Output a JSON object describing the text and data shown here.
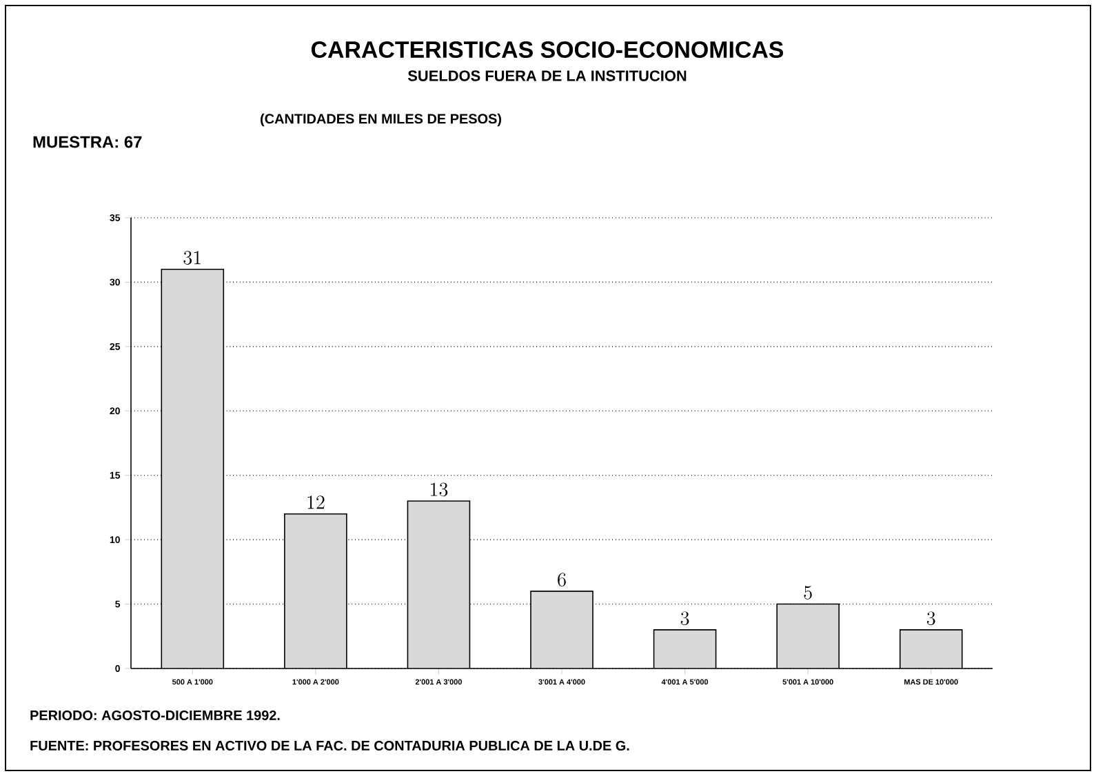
{
  "chart_data": {
    "type": "bar",
    "title": "CARACTERISTICAS SOCIO-ECONOMICAS",
    "subtitle": "SUELDOS FUERA DE LA INSTITUCION",
    "annotations": [
      "(CANTIDADES EN MILES DE PESOS)",
      "MUESTRA: 67",
      "PERIODO: AGOSTO-DICIEMBRE 1992.",
      "FUENTE: PROFESORES EN ACTIVO DE LA FAC. DE CONTADURIA PUBLICA DE LA U.DE G."
    ],
    "categories": [
      "500 A 1'000",
      "1'000 A 2'000",
      "2'001 A 3'000",
      "3'001 A 4'000",
      "4'001 A 5'000",
      "5'001 A 10'000",
      "MAS DE 10'000"
    ],
    "values": [
      31,
      12,
      13,
      6,
      3,
      5,
      3
    ],
    "color": "#d9d9d9",
    "ylim": [
      0,
      35
    ],
    "yticks": [
      0,
      5,
      10,
      15,
      20,
      25,
      30,
      35
    ],
    "grid": "y",
    "data_labels": true
  }
}
